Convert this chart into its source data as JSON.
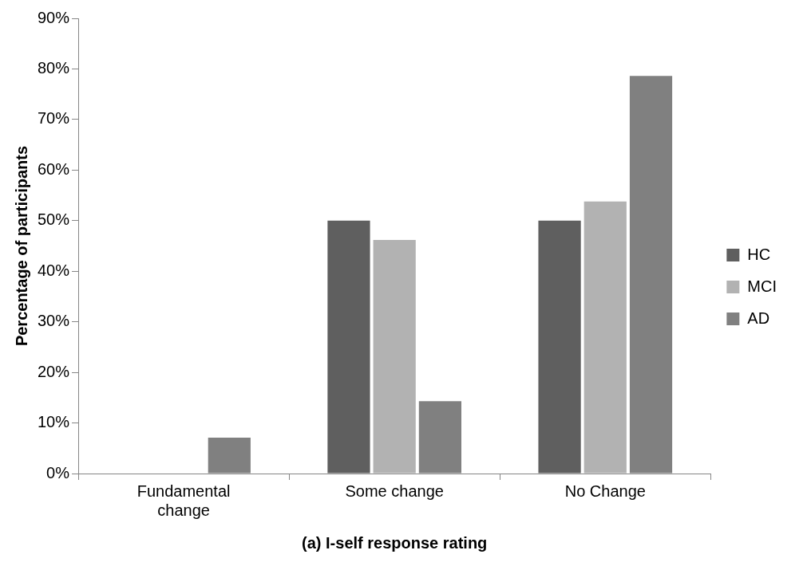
{
  "chart_data": {
    "type": "bar",
    "xlabel": "(a) I-self response rating",
    "ylabel": "Percentage of participants",
    "categories": [
      "Fundamental change",
      "Some change",
      "No Change"
    ],
    "series": [
      {
        "name": "HC",
        "color": "#5f5f5f",
        "values": [
          0,
          50,
          50
        ]
      },
      {
        "name": "MCI",
        "color": "#b2b2b2",
        "values": [
          0,
          46.2,
          53.8
        ]
      },
      {
        "name": "AD",
        "color": "#808080",
        "values": [
          7.1,
          14.3,
          78.6
        ]
      }
    ],
    "ylim": [
      0,
      90
    ],
    "yticks": [
      {
        "value": 0,
        "label": "0%"
      },
      {
        "value": 10,
        "label": "10%"
      },
      {
        "value": 20,
        "label": "20%"
      },
      {
        "value": 30,
        "label": "30%"
      },
      {
        "value": 40,
        "label": "40%"
      },
      {
        "value": 50,
        "label": "50%"
      },
      {
        "value": 60,
        "label": "60%"
      },
      {
        "value": 70,
        "label": "70%"
      },
      {
        "value": 80,
        "label": "80%"
      },
      {
        "value": 90,
        "label": "90%"
      }
    ],
    "grid": false,
    "legend": "right"
  }
}
